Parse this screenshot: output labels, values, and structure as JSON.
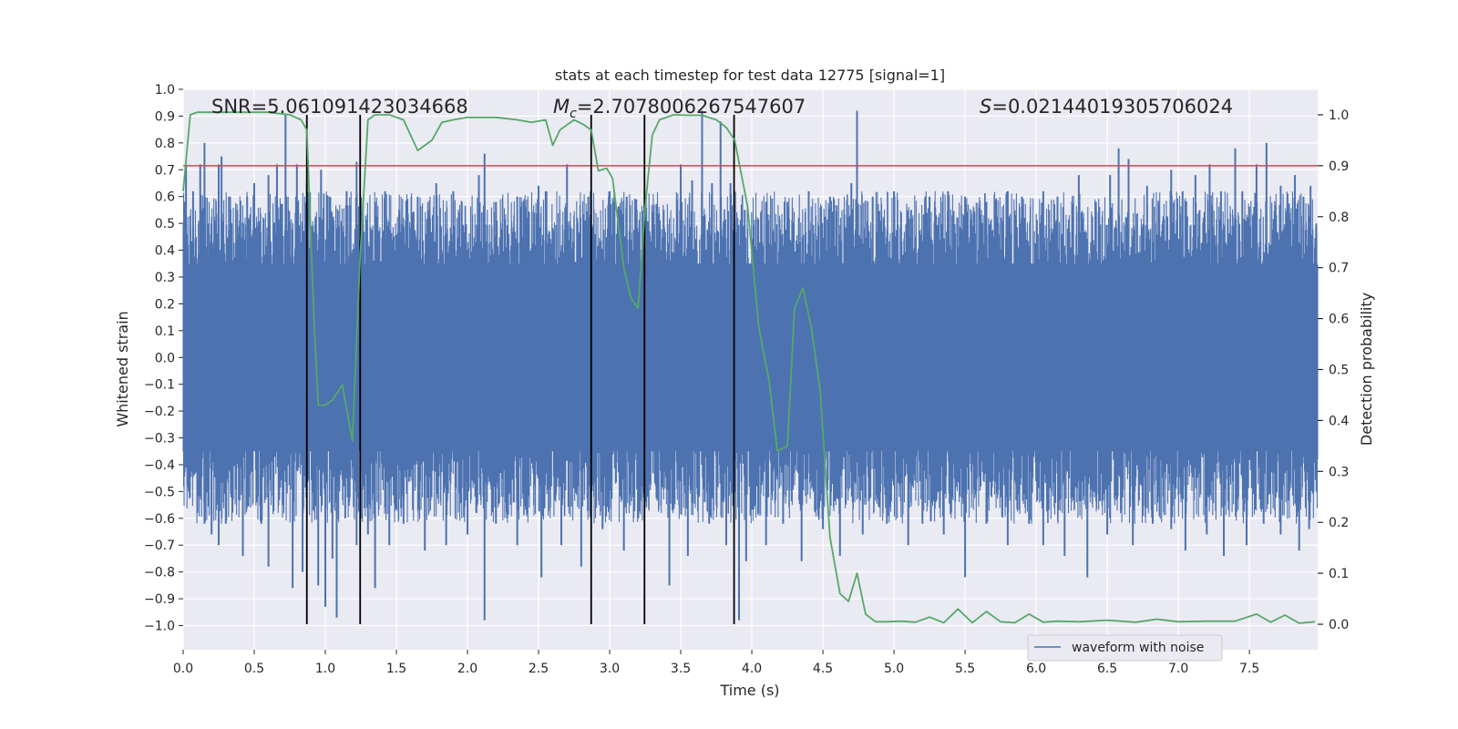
{
  "chart_data": {
    "type": "line",
    "title": "stats at each timestep for test data 12775 [signal=1]",
    "xlabel": "Time (s)",
    "ylabel_left": "Whitened strain",
    "ylabel_right": "Detection probability",
    "xlim": [
      0.0,
      7.98
    ],
    "ylim_left": [
      -1.09,
      1.0
    ],
    "ylim_right": [
      -0.05,
      1.05
    ],
    "xticks": [
      0.0,
      0.5,
      1.0,
      1.5,
      2.0,
      2.5,
      3.0,
      3.5,
      4.0,
      4.5,
      5.0,
      5.5,
      6.0,
      6.5,
      7.0,
      7.5
    ],
    "xtick_labels": [
      "0.0",
      "0.5",
      "1.0",
      "1.5",
      "2.0",
      "2.5",
      "3.0",
      "3.5",
      "4.0",
      "4.5",
      "5.0",
      "5.5",
      "6.0",
      "6.5",
      "7.0",
      "7.5"
    ],
    "yticks_left": [
      1.0,
      0.9,
      0.8,
      0.7,
      0.6,
      0.5,
      0.4,
      0.3,
      0.2,
      0.1,
      0.0,
      -0.1,
      -0.2,
      -0.3,
      -0.4,
      -0.5,
      -0.6,
      -0.7,
      -0.8,
      -0.9,
      -1.0
    ],
    "ytick_labels_left": [
      "1.0",
      "0.9",
      "0.8",
      "0.7",
      "0.6",
      "0.5",
      "0.4",
      "0.3",
      "0.2",
      "0.1",
      "0.0",
      "−0.1",
      "−0.2",
      "−0.3",
      "−0.4",
      "−0.5",
      "−0.6",
      "−0.7",
      "−0.8",
      "−0.9",
      "−1.0"
    ],
    "yticks_right": [
      1.0,
      0.9,
      0.8,
      0.7,
      0.6,
      0.5,
      0.4,
      0.3,
      0.2,
      0.1,
      0.0
    ],
    "ytick_labels_right": [
      "1.0",
      "0.9",
      "0.8",
      "0.7",
      "0.6",
      "0.5",
      "0.4",
      "0.3",
      "0.2",
      "0.1",
      "0.0"
    ],
    "annotations": {
      "snr": "SNR=5.061091423034668",
      "mc_symbol": "M",
      "mc_sub": "c",
      "mc_value": "=2.7078006267547607",
      "s_symbol": "S",
      "s_value": "=0.02144019305706024"
    },
    "legend": {
      "label": "waveform with noise",
      "location": "lower right"
    },
    "threshold": {
      "value": 0.9,
      "axis": "right",
      "color": "#c44e52"
    },
    "vlines": [
      0.87,
      1.245,
      2.87,
      3.245,
      3.875
    ],
    "waveform": {
      "name": "waveform with noise",
      "color": "#4c72b0",
      "description": "dense noisy whitened strain sampled across full time range",
      "core_amplitude": 0.3,
      "spikes_up": [
        [
          0.02,
          0.72
        ],
        [
          0.07,
          0.62
        ],
        [
          0.12,
          0.72
        ],
        [
          0.15,
          0.8
        ],
        [
          0.18,
          0.5
        ],
        [
          0.25,
          0.72
        ],
        [
          0.27,
          0.75
        ],
        [
          0.33,
          0.6
        ],
        [
          0.38,
          0.55
        ],
        [
          0.45,
          0.6
        ],
        [
          0.5,
          0.65
        ],
        [
          0.6,
          0.68
        ],
        [
          0.66,
          0.72
        ],
        [
          0.72,
          0.91
        ],
        [
          0.8,
          0.72
        ],
        [
          0.87,
          0.65
        ],
        [
          0.93,
          0.52
        ],
        [
          0.97,
          0.7
        ],
        [
          1.03,
          0.6
        ],
        [
          1.15,
          0.62
        ],
        [
          1.22,
          0.73
        ],
        [
          1.35,
          0.58
        ],
        [
          1.42,
          0.62
        ],
        [
          1.52,
          0.55
        ],
        [
          1.65,
          0.6
        ],
        [
          1.78,
          0.65
        ],
        [
          1.9,
          0.62
        ],
        [
          2.08,
          0.68
        ],
        [
          2.12,
          0.76
        ],
        [
          2.2,
          0.58
        ],
        [
          2.35,
          0.6
        ],
        [
          2.5,
          0.64
        ],
        [
          2.55,
          0.62
        ],
        [
          2.7,
          0.72
        ],
        [
          2.85,
          0.6
        ],
        [
          3.0,
          0.62
        ],
        [
          3.12,
          0.6
        ],
        [
          3.25,
          0.6
        ],
        [
          3.38,
          0.55
        ],
        [
          3.5,
          0.72
        ],
        [
          3.58,
          0.66
        ],
        [
          3.65,
          0.92
        ],
        [
          3.72,
          0.65
        ],
        [
          3.78,
          0.88
        ],
        [
          3.85,
          0.65
        ],
        [
          3.95,
          0.55
        ],
        [
          4.1,
          0.58
        ],
        [
          4.25,
          0.58
        ],
        [
          4.4,
          0.62
        ],
        [
          4.55,
          0.6
        ],
        [
          4.7,
          0.65
        ],
        [
          4.74,
          0.92
        ],
        [
          4.85,
          0.6
        ],
        [
          5.0,
          0.62
        ],
        [
          5.12,
          0.55
        ],
        [
          5.25,
          0.6
        ],
        [
          5.38,
          0.62
        ],
        [
          5.5,
          0.6
        ],
        [
          5.65,
          0.58
        ],
        [
          5.8,
          0.62
        ],
        [
          5.9,
          0.6
        ],
        [
          6.05,
          0.62
        ],
        [
          6.15,
          0.6
        ],
        [
          6.3,
          0.68
        ],
        [
          6.42,
          0.58
        ],
        [
          6.52,
          0.68
        ],
        [
          6.58,
          0.78
        ],
        [
          6.65,
          0.74
        ],
        [
          6.78,
          0.64
        ],
        [
          6.86,
          0.58
        ],
        [
          6.95,
          0.7
        ],
        [
          7.03,
          0.62
        ],
        [
          7.12,
          0.68
        ],
        [
          7.22,
          0.72
        ],
        [
          7.3,
          0.62
        ],
        [
          7.4,
          0.78
        ],
        [
          7.45,
          0.62
        ],
        [
          7.55,
          0.72
        ],
        [
          7.62,
          0.8
        ],
        [
          7.72,
          0.64
        ],
        [
          7.82,
          0.68
        ],
        [
          7.88,
          0.6
        ],
        [
          7.93,
          0.64
        ],
        [
          7.97,
          0.5
        ]
      ],
      "spikes_down": [
        [
          0.03,
          -0.47
        ],
        [
          0.1,
          -0.58
        ],
        [
          0.15,
          -0.62
        ],
        [
          0.2,
          -0.66
        ],
        [
          0.25,
          -0.7
        ],
        [
          0.3,
          -0.62
        ],
        [
          0.42,
          -0.74
        ],
        [
          0.55,
          -0.62
        ],
        [
          0.6,
          -0.78
        ],
        [
          0.7,
          -0.55
        ],
        [
          0.77,
          -0.86
        ],
        [
          0.84,
          -0.8
        ],
        [
          0.95,
          -0.85
        ],
        [
          1.0,
          -0.93
        ],
        [
          1.05,
          -0.75
        ],
        [
          1.08,
          -0.97
        ],
        [
          1.14,
          -0.6
        ],
        [
          1.22,
          -0.7
        ],
        [
          1.3,
          -0.66
        ],
        [
          1.35,
          -0.86
        ],
        [
          1.45,
          -0.7
        ],
        [
          1.55,
          -0.62
        ],
        [
          1.7,
          -0.72
        ],
        [
          1.85,
          -0.7
        ],
        [
          2.0,
          -0.66
        ],
        [
          2.12,
          -0.98
        ],
        [
          2.2,
          -0.62
        ],
        [
          2.35,
          -0.7
        ],
        [
          2.52,
          -0.82
        ],
        [
          2.66,
          -0.7
        ],
        [
          2.8,
          -0.78
        ],
        [
          2.95,
          -0.64
        ],
        [
          3.1,
          -0.72
        ],
        [
          3.2,
          -0.6
        ],
        [
          3.42,
          -0.85
        ],
        [
          3.55,
          -0.74
        ],
        [
          3.7,
          -0.62
        ],
        [
          3.82,
          -0.7
        ],
        [
          3.91,
          -0.98
        ],
        [
          3.96,
          -0.76
        ],
        [
          4.1,
          -0.7
        ],
        [
          4.22,
          -0.62
        ],
        [
          4.35,
          -0.76
        ],
        [
          4.5,
          -0.64
        ],
        [
          4.62,
          -0.74
        ],
        [
          4.78,
          -0.66
        ],
        [
          4.95,
          -0.62
        ],
        [
          5.1,
          -0.7
        ],
        [
          5.2,
          -0.62
        ],
        [
          5.35,
          -0.66
        ],
        [
          5.5,
          -0.82
        ],
        [
          5.65,
          -0.62
        ],
        [
          5.8,
          -0.7
        ],
        [
          5.95,
          -0.62
        ],
        [
          6.05,
          -0.7
        ],
        [
          6.2,
          -0.74
        ],
        [
          6.36,
          -0.82
        ],
        [
          6.5,
          -0.66
        ],
        [
          6.68,
          -0.7
        ],
        [
          6.82,
          -0.62
        ],
        [
          6.95,
          -0.64
        ],
        [
          7.05,
          -0.72
        ],
        [
          7.2,
          -0.66
        ],
        [
          7.32,
          -0.74
        ],
        [
          7.48,
          -0.7
        ],
        [
          7.6,
          -0.62
        ],
        [
          7.72,
          -0.66
        ],
        [
          7.85,
          -0.72
        ],
        [
          7.92,
          -0.64
        ]
      ]
    },
    "detection_probability": {
      "name": "Detection probability",
      "color": "#55a868",
      "x": [
        0.0,
        0.05,
        0.1,
        0.2,
        0.4,
        0.6,
        0.75,
        0.83,
        0.87,
        0.92,
        0.95,
        1.0,
        1.05,
        1.12,
        1.19,
        1.245,
        1.3,
        1.35,
        1.45,
        1.55,
        1.65,
        1.75,
        1.82,
        1.9,
        2.0,
        2.2,
        2.35,
        2.45,
        2.55,
        2.6,
        2.65,
        2.75,
        2.82,
        2.87,
        2.92,
        2.98,
        3.02,
        3.1,
        3.15,
        3.2,
        3.25,
        3.3,
        3.35,
        3.45,
        3.55,
        3.65,
        3.75,
        3.82,
        3.88,
        3.97,
        4.05,
        4.12,
        4.18,
        4.25,
        4.3,
        4.36,
        4.42,
        4.48,
        4.55,
        4.62,
        4.68,
        4.74,
        4.8,
        4.87,
        4.95,
        5.05,
        5.15,
        5.25,
        5.35,
        5.45,
        5.55,
        5.65,
        5.75,
        5.85,
        5.95,
        6.05,
        6.15,
        6.3,
        6.5,
        6.7,
        6.85,
        7.0,
        7.2,
        7.4,
        7.55,
        7.65,
        7.75,
        7.85,
        7.96
      ],
      "y": [
        0.85,
        1.0,
        1.005,
        1.005,
        1.005,
        1.005,
        1.0,
        0.99,
        0.97,
        0.6,
        0.43,
        0.43,
        0.44,
        0.47,
        0.36,
        0.72,
        0.99,
        1.0,
        1.0,
        0.99,
        0.93,
        0.95,
        0.985,
        0.99,
        0.995,
        0.995,
        0.99,
        0.985,
        0.99,
        0.94,
        0.97,
        0.99,
        0.98,
        0.97,
        0.89,
        0.895,
        0.875,
        0.7,
        0.64,
        0.62,
        0.82,
        0.96,
        0.99,
        1.0,
        0.999,
        0.999,
        0.99,
        0.975,
        0.95,
        0.82,
        0.58,
        0.48,
        0.34,
        0.35,
        0.62,
        0.66,
        0.58,
        0.46,
        0.17,
        0.06,
        0.045,
        0.1,
        0.02,
        0.005,
        0.005,
        0.006,
        0.004,
        0.014,
        0.003,
        0.03,
        0.003,
        0.025,
        0.005,
        0.003,
        0.02,
        0.004,
        0.006,
        0.005,
        0.008,
        0.004,
        0.01,
        0.005,
        0.006,
        0.006,
        0.02,
        0.004,
        0.018,
        0.002,
        0.005
      ]
    }
  }
}
